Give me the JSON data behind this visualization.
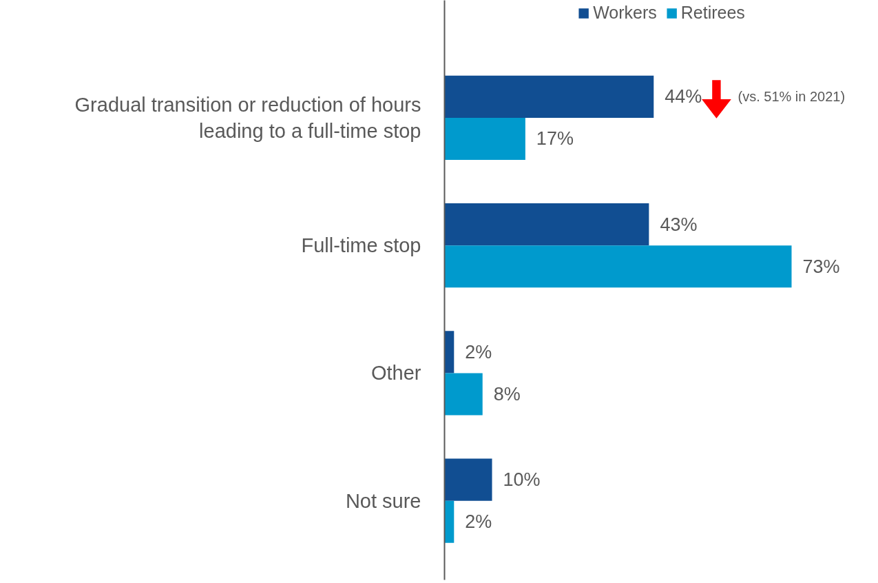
{
  "chart_data": {
    "type": "bar",
    "orientation": "horizontal",
    "categories": [
      "Gradual transition or reduction of hours leading to a full-time stop",
      "Full-time stop",
      "Other",
      "Not sure"
    ],
    "series": [
      {
        "name": "Workers",
        "color": "#114e92",
        "values": [
          44,
          43,
          2,
          10
        ],
        "value_labels": [
          "44%",
          "43%",
          "2%",
          "10%"
        ]
      },
      {
        "name": "Retirees",
        "color": "#009acd",
        "values": [
          17,
          73,
          8,
          2
        ],
        "value_labels": [
          "17%",
          "73%",
          "8%",
          "2%"
        ]
      }
    ],
    "legend": "top",
    "grid": false,
    "annotations": [
      "(vs. 51% in 2021)"
    ]
  }
}
